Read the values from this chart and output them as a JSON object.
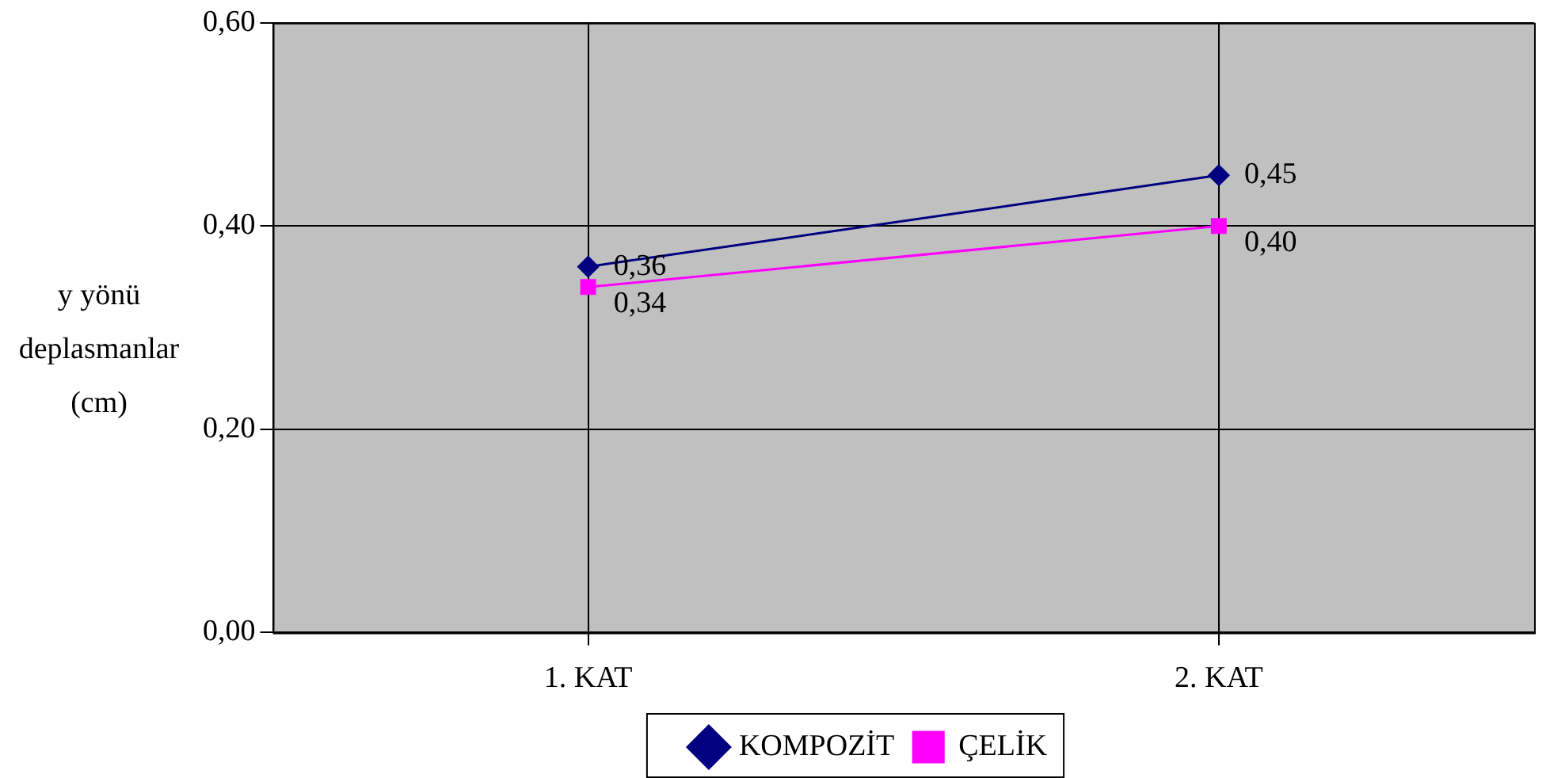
{
  "chart_data": {
    "type": "line",
    "ylabel": "y yönü deplasmanlar (cm)",
    "categories": [
      "1. KAT",
      "2. KAT"
    ],
    "series": [
      {
        "name": "KOMPOZİT",
        "color": "#000080",
        "marker": "diamond",
        "values": [
          0.36,
          0.45
        ],
        "value_labels": [
          "0,36",
          "0,45"
        ]
      },
      {
        "name": "ÇELİK",
        "color": "#ff00ff",
        "marker": "square",
        "values": [
          0.34,
          0.4
        ],
        "value_labels": [
          "0,34",
          "0,40"
        ]
      }
    ],
    "ylim": [
      0,
      0.6
    ],
    "yticks": [
      {
        "value": 0,
        "label": "0,00"
      },
      {
        "value": 0.2,
        "label": "0,20"
      },
      {
        "value": 0.4,
        "label": "0,40"
      },
      {
        "value": 0.6,
        "label": "0,60"
      }
    ],
    "grid": true,
    "legend": "bottom"
  }
}
